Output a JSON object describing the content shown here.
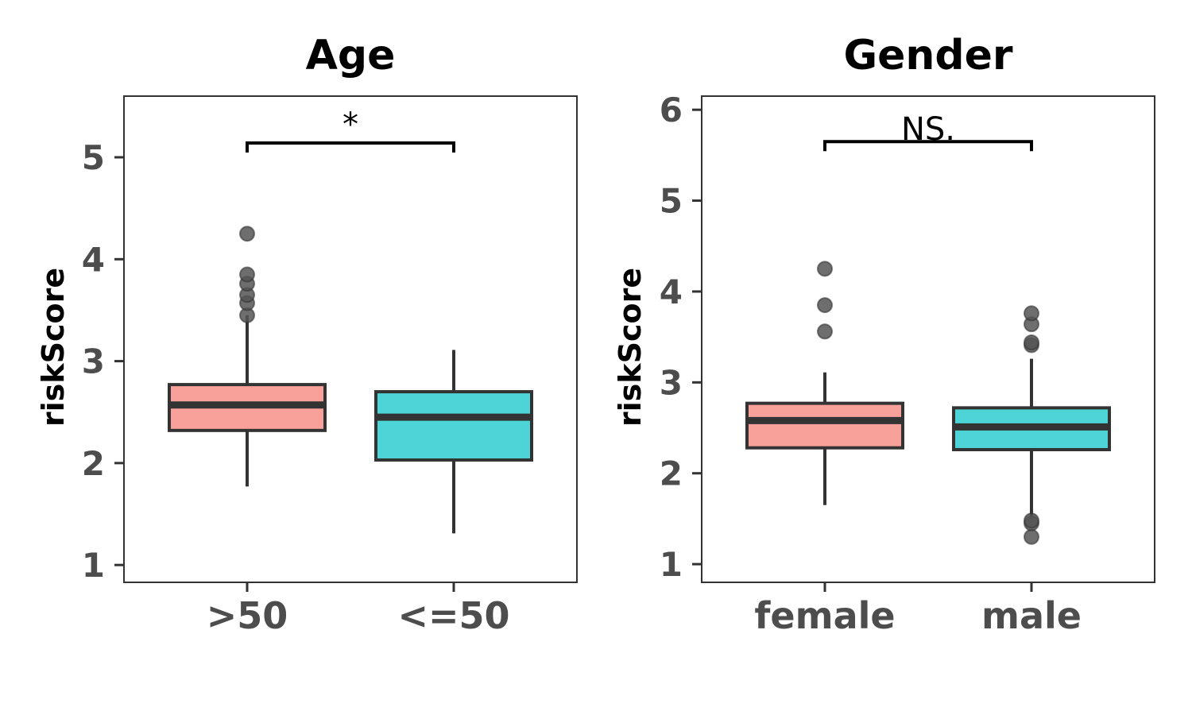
{
  "chart_data": [
    {
      "type": "box",
      "title": "Age",
      "ylabel": "riskScore",
      "xlabel": "",
      "ylim": [
        0.83,
        5.6
      ],
      "yticks": [
        1,
        2,
        3,
        4,
        5
      ],
      "categories": [
        ">50",
        "<=50"
      ],
      "colors": [
        "#F8A09A",
        "#4DD4D7"
      ],
      "boxes": [
        {
          "category": ">50",
          "whisker_low": 1.77,
          "q1": 2.32,
          "median": 2.57,
          "q3": 2.77,
          "whisker_high": 3.45,
          "outliers": [
            3.45,
            3.57,
            3.65,
            3.76,
            3.85,
            4.25
          ]
        },
        {
          "category": "<=50",
          "whisker_low": 1.31,
          "q1": 2.03,
          "median": 2.45,
          "q3": 2.7,
          "whisker_high": 3.11,
          "outliers": []
        }
      ],
      "comparison": {
        "from": ">50",
        "to": "<=50",
        "label": "*",
        "y": 5.14
      }
    },
    {
      "type": "box",
      "title": "Gender",
      "ylabel": "riskScore",
      "xlabel": "",
      "ylim": [
        0.8,
        6.15
      ],
      "yticks": [
        1,
        2,
        3,
        4,
        5,
        6
      ],
      "categories": [
        "female",
        "male"
      ],
      "colors": [
        "#F8A09A",
        "#4DD4D7"
      ],
      "boxes": [
        {
          "category": "female",
          "whisker_low": 1.65,
          "q1": 2.28,
          "median": 2.58,
          "q3": 2.77,
          "whisker_high": 3.11,
          "outliers": [
            3.56,
            3.85,
            4.25
          ]
        },
        {
          "category": "male",
          "whisker_low": 1.5,
          "q1": 2.26,
          "median": 2.51,
          "q3": 2.72,
          "whisker_high": 3.26,
          "outliers": [
            1.3,
            1.45,
            1.48,
            3.41,
            3.44,
            3.64,
            3.76
          ]
        }
      ],
      "comparison": {
        "from": "female",
        "to": "male",
        "label": "NS.",
        "y": 5.65
      }
    }
  ],
  "colors": {
    "box_edge": "#333333",
    "outlier_fill": "#555555",
    "tick_label": "#4d4d4d",
    "panel_border": "#333333"
  }
}
